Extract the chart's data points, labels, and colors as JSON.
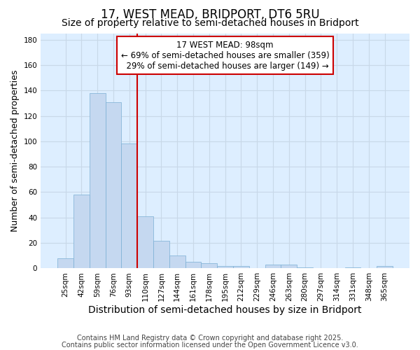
{
  "title": "17, WEST MEAD, BRIDPORT, DT6 5RU",
  "subtitle": "Size of property relative to semi-detached houses in Bridport",
  "xlabel": "Distribution of semi-detached houses by size in Bridport",
  "ylabel": "Number of semi-detached properties",
  "categories": [
    "25sqm",
    "42sqm",
    "59sqm",
    "76sqm",
    "93sqm",
    "110sqm",
    "127sqm",
    "144sqm",
    "161sqm",
    "178sqm",
    "195sqm",
    "212sqm",
    "229sqm",
    "246sqm",
    "263sqm",
    "280sqm",
    "297sqm",
    "314sqm",
    "331sqm",
    "348sqm",
    "365sqm"
  ],
  "values": [
    8,
    58,
    138,
    131,
    98,
    41,
    22,
    10,
    5,
    4,
    2,
    2,
    0,
    3,
    3,
    1,
    0,
    0,
    1,
    0,
    2
  ],
  "bar_color": "#c5d8f0",
  "bar_edge_color": "#7bafd4",
  "bar_edge_width": 0.5,
  "red_line_x": 4.5,
  "red_line_color": "#cc0000",
  "annotation_box_text": "17 WEST MEAD: 98sqm\n← 69% of semi-detached houses are smaller (359)\n  29% of semi-detached houses are larger (149) →",
  "annotation_box_color": "#cc0000",
  "ylim": [
    0,
    185
  ],
  "yticks": [
    0,
    20,
    40,
    60,
    80,
    100,
    120,
    140,
    160,
    180
  ],
  "grid_color": "#c8d8e8",
  "background_color": "#ddeeff",
  "fig_background_color": "#ffffff",
  "footer_line1": "Contains HM Land Registry data © Crown copyright and database right 2025.",
  "footer_line2": "Contains public sector information licensed under the Open Government Licence v3.0.",
  "title_fontsize": 12,
  "subtitle_fontsize": 10,
  "tick_fontsize": 7.5,
  "xlabel_fontsize": 10,
  "ylabel_fontsize": 9,
  "footer_fontsize": 7,
  "annotation_fontsize": 8.5
}
